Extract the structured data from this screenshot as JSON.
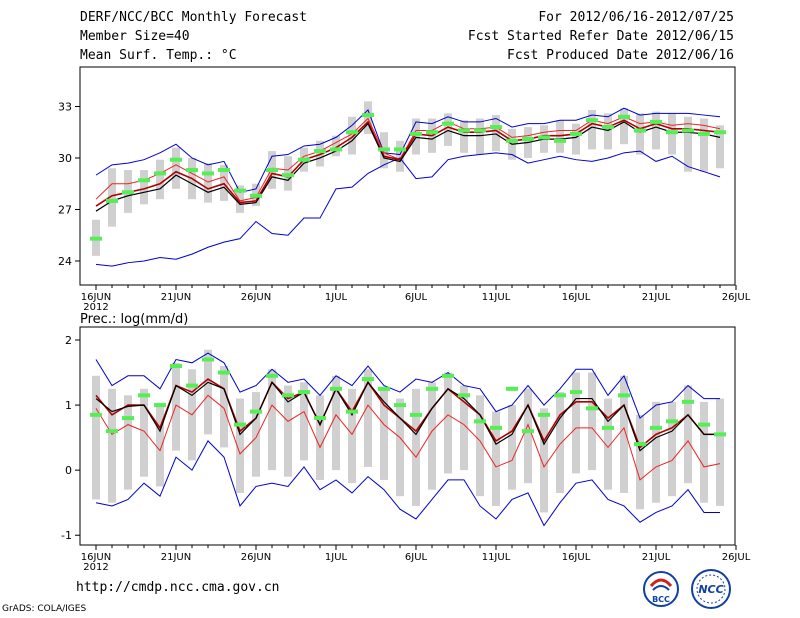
{
  "header": {
    "left": [
      "DERF/NCC/BCC Monthly Forecast",
      "Member Size=40",
      "Mean Surf. Temp.: °C"
    ],
    "right": [
      "For 2012/06/16-2012/07/25",
      "Fcst Started Refer Date 2012/06/15",
      "Fcst Produced Date 2012/06/16"
    ]
  },
  "footer": {
    "url": "http://cmdp.ncc.cma.gov.cn",
    "grads": "GrADS: COLA/IGES"
  },
  "logos": [
    {
      "name": "bcc-logo",
      "text": "BCC"
    },
    {
      "name": "ncc-logo",
      "text": "NCC"
    }
  ],
  "colors": {
    "ensemble_mean": "#000000",
    "median": "#b00000",
    "lower_percentile": "#ee2222",
    "envelope": "#0000cc",
    "member_marker": "#55ee55",
    "range_bar": "#d0d0d0"
  },
  "chart_data": [
    {
      "type": "line",
      "title": "Mean Surf. Temp.: °C",
      "days": 40,
      "x_tick_labels": [
        "16JUN",
        "21JUN",
        "26JUN",
        "1JUL",
        "6JUL",
        "11JUL",
        "16JUL",
        "21JUL",
        "26JUL"
      ],
      "x_year_label": "2012",
      "ylim": [
        22.6,
        35.3
      ],
      "y_ticks": [
        24,
        27,
        30,
        33
      ],
      "series": [
        {
          "name": "max",
          "values": [
            29.0,
            29.6,
            29.7,
            29.9,
            30.3,
            30.8,
            30.0,
            29.6,
            29.8,
            28.0,
            28.2,
            30.1,
            30.2,
            30.7,
            30.8,
            31.2,
            31.9,
            32.8,
            30.3,
            30.2,
            32.1,
            32.0,
            32.4,
            32.1,
            32.1,
            32.3,
            31.8,
            32.0,
            32.0,
            32.2,
            32.2,
            32.5,
            32.4,
            32.9,
            32.5,
            32.6,
            32.6,
            32.6,
            32.5,
            32.4
          ]
        },
        {
          "name": "upper",
          "values": [
            27.6,
            28.5,
            28.5,
            28.7,
            29.1,
            29.6,
            29.1,
            28.6,
            28.9,
            27.5,
            27.7,
            29.4,
            29.3,
            30.1,
            30.4,
            30.9,
            31.4,
            32.3,
            30.3,
            29.9,
            31.6,
            31.6,
            32.1,
            31.7,
            31.7,
            31.8,
            31.2,
            31.3,
            31.5,
            31.6,
            31.6,
            32.2,
            32.0,
            32.4,
            32.0,
            32.1,
            31.9,
            32.0,
            31.9,
            31.7
          ]
        },
        {
          "name": "ensemble_mean",
          "values": [
            26.9,
            27.5,
            27.8,
            28.0,
            28.2,
            29.0,
            28.5,
            28.0,
            28.3,
            27.3,
            27.4,
            28.9,
            28.7,
            29.7,
            30.0,
            30.4,
            31.0,
            32.0,
            30.0,
            29.8,
            31.2,
            31.1,
            31.6,
            31.3,
            31.3,
            31.4,
            30.8,
            30.9,
            31.1,
            31.1,
            31.2,
            31.8,
            31.6,
            32.1,
            31.5,
            31.8,
            31.5,
            31.5,
            31.4,
            31.2
          ]
        },
        {
          "name": "median",
          "values": [
            27.2,
            27.8,
            28.0,
            28.2,
            28.5,
            29.2,
            28.8,
            28.2,
            28.5,
            27.4,
            27.5,
            29.1,
            28.9,
            29.9,
            30.2,
            30.6,
            31.2,
            32.1,
            30.1,
            29.9,
            31.4,
            31.3,
            31.8,
            31.5,
            31.5,
            31.6,
            31.0,
            31.1,
            31.3,
            31.3,
            31.4,
            32.0,
            31.8,
            32.2,
            31.7,
            32.0,
            31.7,
            31.7,
            31.6,
            31.5
          ]
        },
        {
          "name": "min",
          "values": [
            23.8,
            23.7,
            23.9,
            24.0,
            24.2,
            24.1,
            24.4,
            24.8,
            25.1,
            25.3,
            26.3,
            25.6,
            25.5,
            26.5,
            26.5,
            28.2,
            28.3,
            29.1,
            29.6,
            30.0,
            28.8,
            28.9,
            29.9,
            30.1,
            30.2,
            30.3,
            30.2,
            29.7,
            29.9,
            30.1,
            29.9,
            29.8,
            30.0,
            30.3,
            30.4,
            29.8,
            30.1,
            29.5,
            29.2,
            28.9
          ]
        },
        {
          "name": "single_member",
          "values": [
            25.3,
            27.5,
            28.0,
            28.7,
            29.1,
            29.9,
            29.3,
            29.1,
            29.3,
            28.1,
            27.8,
            29.3,
            29.0,
            29.9,
            30.4,
            30.5,
            31.5,
            32.5,
            30.5,
            30.5,
            31.4,
            31.5,
            32.0,
            31.6,
            31.6,
            31.8,
            31.0,
            31.1,
            31.2,
            31.0,
            31.4,
            32.2,
            31.8,
            32.4,
            31.6,
            32.1,
            31.5,
            31.6,
            31.4,
            31.5
          ]
        }
      ],
      "range_low": [
        24.3,
        26.0,
        26.8,
        27.3,
        27.6,
        28.2,
        27.6,
        27.4,
        27.5,
        26.8,
        27.2,
        28.2,
        28.1,
        29.2,
        29.5,
        30.1,
        30.2,
        31.4,
        29.4,
        29.2,
        30.2,
        30.3,
        30.7,
        30.3,
        30.2,
        30.4,
        29.9,
        30.0,
        30.3,
        30.3,
        30.2,
        30.5,
        30.5,
        30.8,
        30.2,
        30.5,
        30.2,
        29.2,
        29.2,
        29.4
      ],
      "range_high": [
        26.4,
        29.4,
        29.3,
        29.3,
        29.9,
        30.6,
        30.0,
        29.7,
        29.6,
        28.4,
        28.5,
        30.4,
        30.1,
        30.6,
        31.0,
        31.3,
        32.4,
        33.3,
        31.5,
        31.0,
        32.3,
        32.3,
        32.6,
        32.2,
        32.3,
        32.5,
        31.7,
        31.8,
        31.9,
        32.2,
        32.0,
        32.8,
        32.6,
        32.9,
        32.6,
        32.7,
        32.6,
        32.4,
        32.3,
        31.9
      ]
    },
    {
      "type": "line",
      "title": "Prec.: log(mm/d)",
      "days": 40,
      "x_tick_labels": [
        "16JUN",
        "21JUN",
        "26JUN",
        "1JUL",
        "6JUL",
        "11JUL",
        "16JUL",
        "21JUL",
        "26JUL"
      ],
      "x_year_label": "2012",
      "ylim": [
        -1.15,
        2.2
      ],
      "y_ticks": [
        -1,
        0,
        1,
        2
      ],
      "series": [
        {
          "name": "max",
          "values": [
            1.7,
            1.3,
            1.45,
            1.45,
            1.25,
            1.7,
            1.65,
            1.8,
            1.65,
            1.2,
            1.3,
            1.55,
            1.35,
            1.4,
            1.15,
            1.45,
            1.3,
            1.6,
            1.3,
            1.2,
            1.4,
            1.35,
            1.5,
            1.3,
            1.25,
            0.9,
            1.0,
            1.3,
            1.0,
            1.25,
            1.55,
            1.55,
            1.15,
            1.45,
            0.8,
            1.0,
            1.05,
            1.3,
            1.1,
            1.1
          ]
        },
        {
          "name": "ensemble_mean",
          "values": [
            1.1,
            0.9,
            0.98,
            1.0,
            0.6,
            1.3,
            1.15,
            1.35,
            1.25,
            0.55,
            0.8,
            1.35,
            1.05,
            1.2,
            0.7,
            1.25,
            0.85,
            1.35,
            1.05,
            0.8,
            0.55,
            0.95,
            1.25,
            1.1,
            0.85,
            0.4,
            0.55,
            1.0,
            0.4,
            0.8,
            1.1,
            1.1,
            0.75,
            1.0,
            0.3,
            0.5,
            0.6,
            0.85,
            0.55,
            0.55
          ]
        },
        {
          "name": "median",
          "values": [
            1.15,
            0.85,
            1.0,
            1.0,
            0.65,
            1.3,
            1.2,
            1.4,
            1.25,
            0.6,
            0.8,
            1.35,
            1.1,
            1.2,
            0.7,
            1.25,
            0.9,
            1.35,
            1.0,
            0.8,
            0.6,
            0.95,
            1.25,
            1.05,
            0.85,
            0.45,
            0.6,
            1.0,
            0.45,
            0.85,
            1.05,
            1.05,
            0.8,
            1.0,
            0.35,
            0.55,
            0.65,
            0.85,
            0.55,
            0.55
          ]
        },
        {
          "name": "lower_percentile",
          "values": [
            0.95,
            0.55,
            0.7,
            0.6,
            0.3,
            1.0,
            0.85,
            1.15,
            0.95,
            0.25,
            0.5,
            1.0,
            0.75,
            0.9,
            0.35,
            0.85,
            0.55,
            1.0,
            0.7,
            0.5,
            0.2,
            0.6,
            0.85,
            0.7,
            0.45,
            0.05,
            0.15,
            0.7,
            0.05,
            0.4,
            0.65,
            0.65,
            0.35,
            0.65,
            -0.15,
            0.05,
            0.15,
            0.45,
            0.05,
            0.1
          ]
        },
        {
          "name": "min",
          "values": [
            -0.5,
            -0.55,
            -0.45,
            -0.2,
            -0.4,
            0.2,
            0.0,
            0.45,
            0.2,
            -0.55,
            -0.25,
            -0.2,
            -0.25,
            0.05,
            -0.3,
            -0.15,
            -0.35,
            -0.1,
            -0.3,
            -0.6,
            -0.75,
            -0.45,
            -0.15,
            -0.15,
            -0.55,
            -0.75,
            -0.45,
            -0.35,
            -0.85,
            -0.5,
            -0.2,
            -0.15,
            -0.45,
            -0.55,
            -0.8,
            -0.65,
            -0.55,
            -0.3,
            -0.65,
            -0.65
          ]
        },
        {
          "name": "single_member",
          "values": [
            0.85,
            0.6,
            0.8,
            1.15,
            1.0,
            1.6,
            1.3,
            1.7,
            1.5,
            0.7,
            0.9,
            1.45,
            1.15,
            1.2,
            0.8,
            1.25,
            0.9,
            1.4,
            1.25,
            1.0,
            0.85,
            1.25,
            1.45,
            1.15,
            0.75,
            0.65,
            1.25,
            0.6,
            0.85,
            1.15,
            1.2,
            0.95,
            0.65,
            1.15,
            0.4,
            0.65,
            0.75,
            1.05,
            0.7,
            0.55
          ]
        }
      ],
      "range_low": [
        -0.45,
        -0.5,
        -0.3,
        -0.1,
        -0.25,
        0.3,
        0.15,
        0.55,
        0.35,
        -0.35,
        -0.1,
        0.0,
        -0.1,
        0.15,
        -0.15,
        0.0,
        -0.2,
        0.05,
        -0.15,
        -0.4,
        -0.55,
        -0.3,
        -0.05,
        0.0,
        -0.4,
        -0.55,
        -0.3,
        -0.2,
        -0.65,
        -0.35,
        -0.05,
        0.0,
        -0.3,
        -0.35,
        -0.6,
        -0.5,
        -0.4,
        -0.2,
        -0.5,
        -0.55
      ],
      "range_high": [
        1.45,
        1.25,
        1.15,
        1.25,
        1.0,
        1.65,
        1.55,
        1.85,
        1.6,
        1.1,
        1.2,
        1.55,
        1.3,
        1.35,
        1.15,
        1.45,
        1.25,
        1.55,
        1.25,
        1.1,
        1.25,
        1.35,
        1.5,
        1.3,
        1.15,
        0.9,
        1.0,
        1.25,
        0.95,
        1.2,
        1.5,
        1.5,
        1.1,
        1.45,
        0.85,
        1.05,
        1.05,
        1.3,
        1.05,
        1.1
      ]
    }
  ]
}
